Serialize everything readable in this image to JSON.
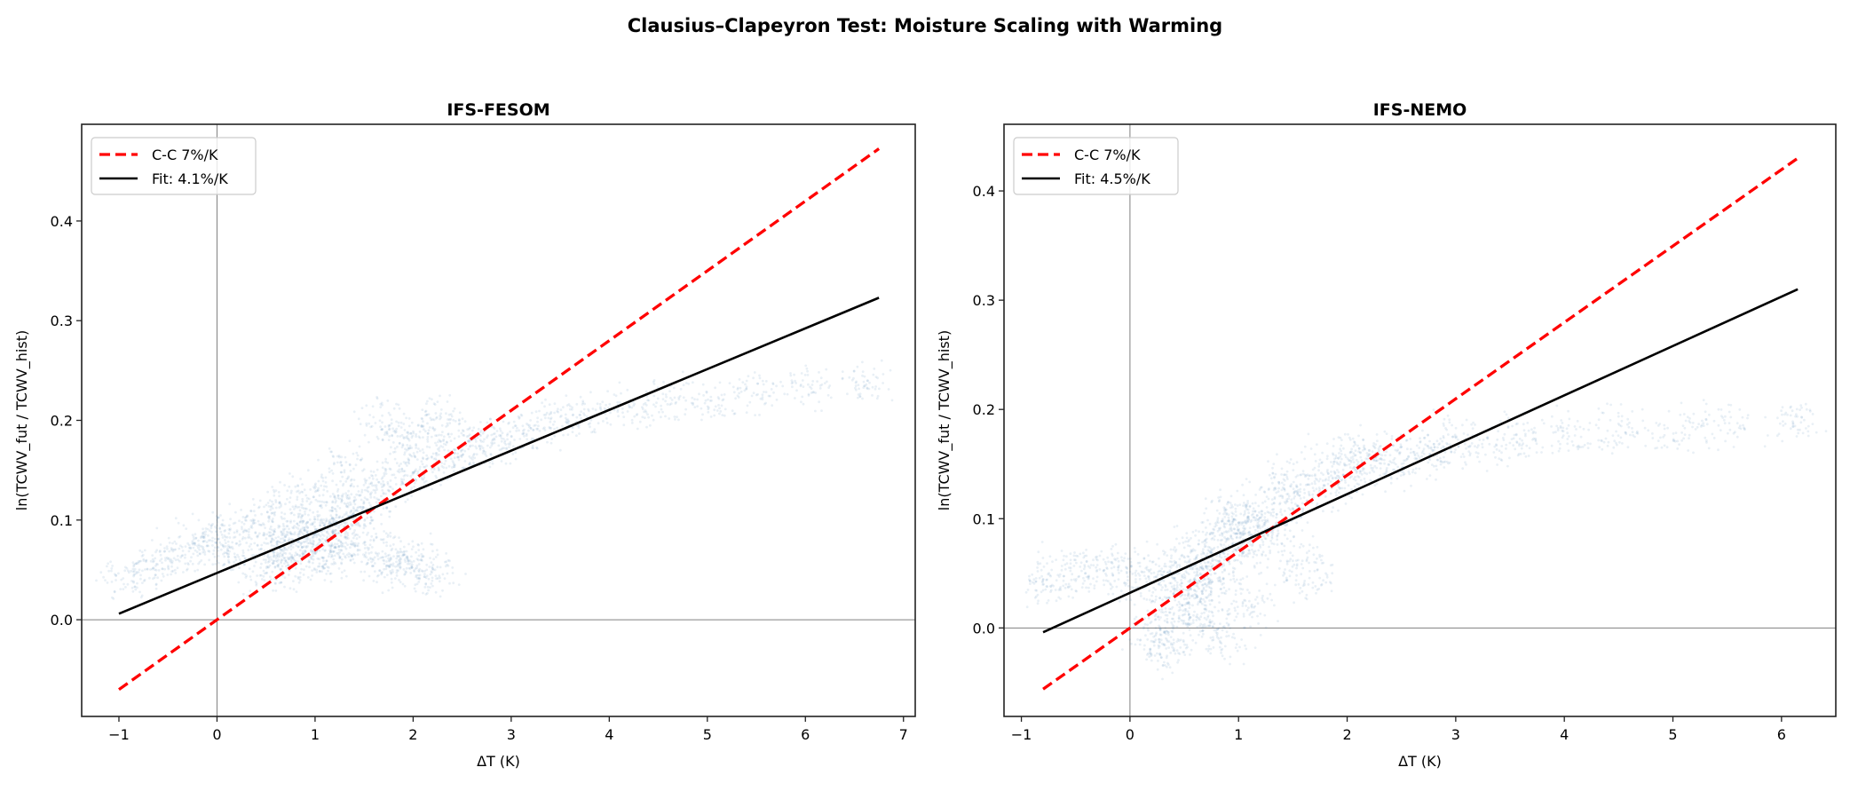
{
  "suptitle": "Clausius–Clapeyron Test: Moisture Scaling with Warming",
  "colors": {
    "scatter": "#4682b4",
    "cc_line": "#ff0000",
    "fit_line": "#000000",
    "reference": "#808080"
  },
  "chart_data": [
    {
      "type": "scatter",
      "title": "IFS-FESOM",
      "xlabel": "ΔT (K)",
      "ylabel": "ln(TCWV_fut / TCWV_hist)",
      "xlim": [
        -1.38,
        7.12
      ],
      "ylim": [
        -0.097,
        0.497
      ],
      "xticks": [
        "−1",
        "0",
        "1",
        "2",
        "3",
        "4",
        "5",
        "6",
        "7"
      ],
      "xtick_values": [
        -1,
        0,
        1,
        2,
        3,
        4,
        5,
        6,
        7
      ],
      "yticks": [
        "0.0",
        "0.1",
        "0.2",
        "0.3",
        "0.4"
      ],
      "ytick_values": [
        0,
        0.1,
        0.2,
        0.3,
        0.4
      ],
      "legend": {
        "position": "upper-left",
        "entries": [
          "C-C 7%/K",
          "Fit: 4.1%/K"
        ]
      },
      "lines": [
        {
          "name": "C-C 7%/K",
          "style": "dashed",
          "x": [
            -1,
            6.75
          ],
          "y": [
            -0.07,
            0.4725
          ]
        },
        {
          "name": "Fit: 4.1%/K",
          "style": "solid",
          "x": [
            -1,
            6.75
          ],
          "y": [
            0.006,
            0.323
          ]
        }
      ],
      "points": [
        [
          0.6,
          0.06
        ],
        [
          0.7,
          0.05
        ],
        [
          0.8,
          0.07
        ],
        [
          0.9,
          0.08
        ],
        [
          1.0,
          0.09
        ],
        [
          1.1,
          0.1
        ],
        [
          1.2,
          0.1
        ],
        [
          1.3,
          0.11
        ],
        [
          1.4,
          0.1
        ],
        [
          1.0,
          0.07
        ],
        [
          1.2,
          0.08
        ],
        [
          0.8,
          0.09
        ],
        [
          1.5,
          0.12
        ],
        [
          1.6,
          0.13
        ],
        [
          0.6,
          0.08
        ],
        [
          1.1,
          0.06
        ],
        [
          1.3,
          0.07
        ],
        [
          1.8,
          0.14
        ],
        [
          2.0,
          0.15
        ],
        [
          2.2,
          0.16
        ],
        [
          2.4,
          0.17
        ],
        [
          2.6,
          0.17
        ],
        [
          1.9,
          0.18
        ],
        [
          2.1,
          0.19
        ],
        [
          2.3,
          0.2
        ],
        [
          1.7,
          0.2
        ],
        [
          2.8,
          0.18
        ],
        [
          3.0,
          0.18
        ],
        [
          3.2,
          0.19
        ],
        [
          3.5,
          0.2
        ],
        [
          3.8,
          0.21
        ],
        [
          4.2,
          0.21
        ],
        [
          4.6,
          0.22
        ],
        [
          5.0,
          0.22
        ],
        [
          5.5,
          0.23
        ],
        [
          6.0,
          0.235
        ],
        [
          6.6,
          0.24
        ],
        [
          1.5,
          0.07
        ],
        [
          1.7,
          0.065
        ],
        [
          1.9,
          0.06
        ],
        [
          2.1,
          0.055
        ],
        [
          2.2,
          0.045
        ],
        [
          1.8,
          0.05
        ],
        [
          -0.9,
          0.04
        ],
        [
          -0.7,
          0.05
        ],
        [
          -0.5,
          0.06
        ],
        [
          -0.3,
          0.07
        ],
        [
          -0.1,
          0.08
        ],
        [
          0.1,
          0.085
        ],
        [
          0.3,
          0.09
        ],
        [
          0.0,
          0.07
        ],
        [
          0.5,
          0.1
        ],
        [
          0.7,
          0.12
        ],
        [
          1.0,
          0.13
        ],
        [
          1.3,
          0.15
        ],
        [
          0.4,
          0.05
        ]
      ]
    },
    {
      "type": "scatter",
      "title": "IFS-NEMO",
      "xlabel": "ΔT (K)",
      "ylabel": "ln(TCWV_fut / TCWV_hist)",
      "xlim": [
        -1.16,
        6.5
      ],
      "ylim": [
        -0.081,
        0.461
      ],
      "xticks": [
        "−1",
        "0",
        "1",
        "2",
        "3",
        "4",
        "5",
        "6"
      ],
      "xtick_values": [
        -1,
        0,
        1,
        2,
        3,
        4,
        5,
        6
      ],
      "yticks": [
        "0.0",
        "0.1",
        "0.2",
        "0.3",
        "0.4"
      ],
      "ytick_values": [
        0,
        0.1,
        0.2,
        0.3,
        0.4
      ],
      "legend": {
        "position": "upper-left",
        "entries": [
          "C-C 7%/K",
          "Fit: 4.5%/K"
        ]
      },
      "lines": [
        {
          "name": "C-C 7%/K",
          "style": "dashed",
          "x": [
            -0.8,
            6.15
          ],
          "y": [
            -0.056,
            0.43
          ]
        },
        {
          "name": "Fit: 4.5%/K",
          "style": "solid",
          "x": [
            -0.8,
            6.15
          ],
          "y": [
            -0.004,
            0.31
          ]
        }
      ],
      "points": [
        [
          0.6,
          0.05
        ],
        [
          0.7,
          0.06
        ],
        [
          0.8,
          0.07
        ],
        [
          0.9,
          0.08
        ],
        [
          1.0,
          0.09
        ],
        [
          1.1,
          0.09
        ],
        [
          0.9,
          0.1
        ],
        [
          1.0,
          0.11
        ],
        [
          1.2,
          0.09
        ],
        [
          0.5,
          0.04
        ],
        [
          0.4,
          0.05
        ],
        [
          0.7,
          0.03
        ],
        [
          0.8,
          0.04
        ],
        [
          1.3,
          0.1
        ],
        [
          1.4,
          0.12
        ],
        [
          1.1,
          0.07
        ],
        [
          0.6,
          0.07
        ],
        [
          1.6,
          0.12
        ],
        [
          1.8,
          0.13
        ],
        [
          2.0,
          0.14
        ],
        [
          2.2,
          0.16
        ],
        [
          1.9,
          0.16
        ],
        [
          2.1,
          0.15
        ],
        [
          1.5,
          0.14
        ],
        [
          2.4,
          0.15
        ],
        [
          2.6,
          0.16
        ],
        [
          2.8,
          0.16
        ],
        [
          3.0,
          0.17
        ],
        [
          3.3,
          0.17
        ],
        [
          3.6,
          0.175
        ],
        [
          4.0,
          0.175
        ],
        [
          4.5,
          0.18
        ],
        [
          5.0,
          0.18
        ],
        [
          5.5,
          0.185
        ],
        [
          6.1,
          0.19
        ],
        [
          0.25,
          -0.01
        ],
        [
          0.3,
          0.0
        ],
        [
          0.35,
          -0.02
        ],
        [
          0.45,
          0.01
        ],
        [
          0.55,
          0.02
        ],
        [
          0.7,
          0.0
        ],
        [
          0.9,
          -0.01
        ],
        [
          1.1,
          0.02
        ],
        [
          -0.8,
          0.04
        ],
        [
          -0.6,
          0.05
        ],
        [
          -0.4,
          0.05
        ],
        [
          -0.2,
          0.055
        ],
        [
          0.0,
          0.05
        ],
        [
          0.2,
          0.045
        ],
        [
          1.5,
          0.06
        ],
        [
          1.7,
          0.05
        ]
      ]
    }
  ]
}
